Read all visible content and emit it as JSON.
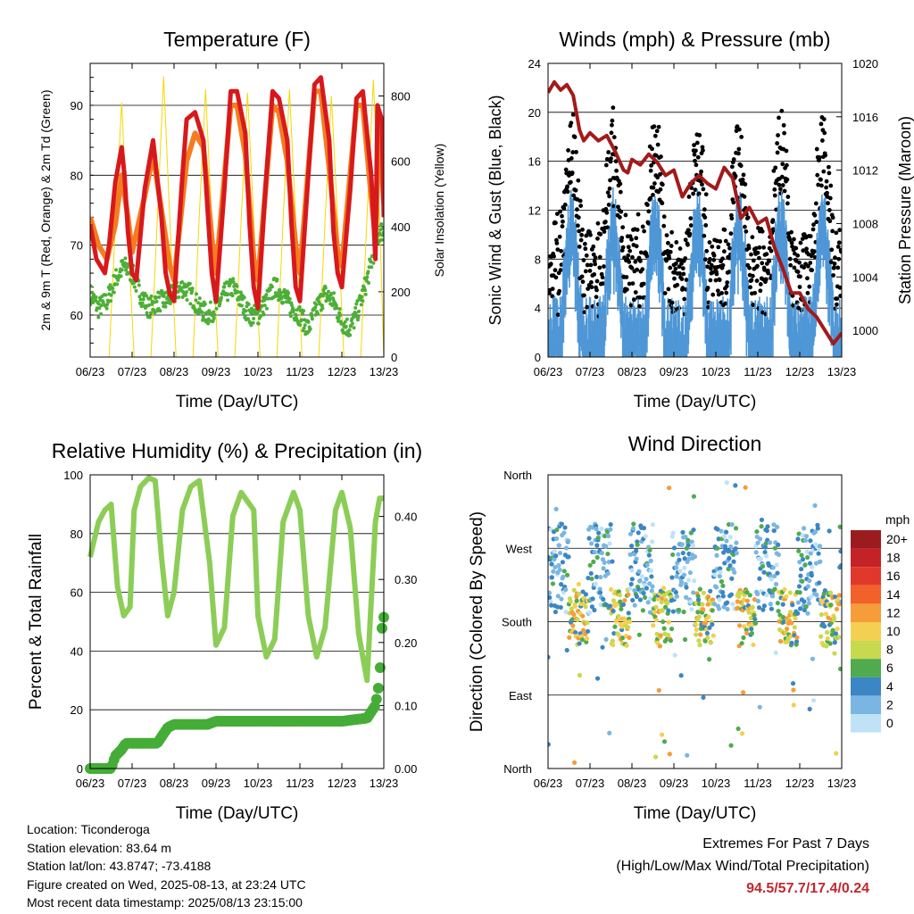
{
  "x_ticks": [
    "06/23",
    "07/23",
    "08/23",
    "09/23",
    "10/23",
    "11/23",
    "12/23",
    "13/23"
  ],
  "colors": {
    "temp2m": "#d7191c",
    "temp9m": "#f47c20",
    "dew": "#4daf37",
    "solar": "#f5d800",
    "wind": "#4f97d6",
    "gust": "#000000",
    "pressure": "#a31a1a",
    "rh": "#8ccd57",
    "precip": "#45ad37"
  },
  "charts": [
    {
      "type": "line",
      "title": "Temperature (F)",
      "xlabel": "Time (Day/UTC)",
      "ylabel": "2m & 9m T (Red, Orange) & 2m Td (Green)",
      "y2label": "Solar Insolation (Yellow)",
      "ylim": [
        54,
        96
      ],
      "yticks": [
        60,
        70,
        80,
        90
      ],
      "y2lim": [
        0,
        900
      ],
      "y2ticks": [
        0,
        200,
        400,
        600,
        800
      ],
      "series": [
        {
          "key": "temp2m",
          "x": [
            0,
            0.15,
            0.35,
            0.45,
            0.6,
            0.75,
            0.82,
            0.9,
            1.0,
            1.1,
            1.3,
            1.5,
            1.7,
            1.8,
            1.9,
            2.0,
            2.2,
            2.3,
            2.5,
            2.7,
            2.8,
            2.9,
            3.0,
            3.2,
            3.35,
            3.5,
            3.7,
            3.8,
            3.9,
            4.0,
            4.2,
            4.35,
            4.5,
            4.7,
            4.8,
            4.9,
            5.0,
            5.2,
            5.35,
            5.5,
            5.7,
            5.8,
            5.9,
            6.0,
            6.2,
            6.35,
            6.5,
            6.7,
            6.8,
            6.85,
            6.95,
            7.0
          ],
          "y": [
            73,
            68,
            66,
            70,
            79,
            84,
            80,
            72,
            66,
            65,
            78,
            85,
            74,
            66,
            63,
            62,
            80,
            88,
            89,
            85,
            75,
            66,
            62,
            78,
            92,
            92,
            86,
            73,
            64,
            61,
            80,
            92,
            91,
            85,
            73,
            64,
            62,
            80,
            93,
            94,
            85,
            72,
            66,
            64,
            78,
            91,
            92,
            80,
            68,
            90,
            88,
            74
          ]
        },
        {
          "key": "temp9m",
          "x": [
            0,
            0.2,
            0.4,
            0.6,
            0.75,
            0.9,
            1.0,
            1.3,
            1.5,
            1.7,
            1.9,
            2.0,
            2.3,
            2.5,
            2.7,
            2.9,
            3.0,
            3.35,
            3.5,
            3.7,
            3.9,
            4.0,
            4.35,
            4.5,
            4.7,
            4.9,
            5.0,
            5.35,
            5.5,
            5.7,
            5.9,
            6.0,
            6.35,
            6.5,
            6.7,
            6.8,
            6.9,
            7.0
          ],
          "y": [
            74,
            70,
            68,
            73,
            80,
            74,
            69,
            77,
            83,
            75,
            67,
            65,
            82,
            86,
            84,
            71,
            66,
            90,
            90,
            83,
            68,
            65,
            90,
            89,
            82,
            70,
            66,
            92,
            92,
            81,
            69,
            67,
            90,
            90,
            77,
            71,
            88,
            76
          ]
        },
        {
          "key": "dew",
          "x": [
            0,
            0.2,
            0.4,
            0.6,
            0.8,
            1.0,
            1.2,
            1.4,
            1.6,
            1.8,
            2.0,
            2.2,
            2.4,
            2.6,
            2.8,
            3.0,
            3.2,
            3.4,
            3.6,
            3.8,
            4.0,
            4.2,
            4.4,
            4.6,
            4.8,
            5.0,
            5.2,
            5.4,
            5.6,
            5.8,
            6.0,
            6.2,
            6.4,
            6.6,
            6.8,
            6.9,
            7.0
          ],
          "y": [
            63,
            61,
            62,
            65,
            67,
            66,
            63,
            61,
            62,
            62,
            63,
            64,
            63,
            61,
            60,
            61,
            63,
            64,
            62,
            60,
            60,
            62,
            64,
            63,
            61,
            60,
            58,
            61,
            63,
            62,
            59,
            58,
            61,
            65,
            70,
            72,
            72
          ]
        },
        {
          "key": "solar",
          "x": [
            0,
            0.45,
            0.6,
            0.75,
            0.9,
            1.05,
            1.45,
            1.6,
            1.75,
            1.9,
            2.05,
            2.45,
            2.6,
            2.75,
            2.9,
            3.05,
            3.45,
            3.6,
            3.75,
            3.9,
            4.05,
            4.45,
            4.6,
            4.75,
            4.9,
            5.05,
            5.45,
            5.6,
            5.75,
            5.9,
            6.05,
            6.45,
            6.6,
            6.75,
            6.9,
            7.0
          ],
          "y": [
            0,
            0,
            400,
            780,
            380,
            0,
            0,
            420,
            860,
            420,
            0,
            0,
            430,
            820,
            410,
            0,
            0,
            420,
            810,
            420,
            0,
            0,
            420,
            820,
            420,
            0,
            0,
            420,
            800,
            420,
            0,
            0,
            430,
            850,
            420,
            0
          ]
        }
      ]
    },
    {
      "type": "scatter",
      "title": "Winds (mph) & Pressure (mb)",
      "xlabel": "Time (Day/UTC)",
      "ylabel": "Sonic Wind & Gust (Blue, Black)",
      "y2label": "Station Pressure (Maroon)",
      "ylim": [
        0,
        24
      ],
      "yticks": [
        0,
        4,
        8,
        12,
        16,
        20,
        24
      ],
      "y2lim": [
        998,
        1020
      ],
      "y2ticks": [
        1000,
        1004,
        1008,
        1012,
        1016,
        1020
      ],
      "series": [
        {
          "key": "pressure",
          "x": [
            0,
            0.15,
            0.3,
            0.45,
            0.6,
            0.75,
            0.85,
            1.0,
            1.2,
            1.4,
            1.6,
            1.8,
            1.9,
            2.0,
            2.2,
            2.4,
            2.6,
            2.8,
            3.0,
            3.2,
            3.4,
            3.6,
            3.8,
            4.0,
            4.2,
            4.4,
            4.6,
            4.8,
            5.0,
            5.2,
            5.4,
            5.6,
            5.8,
            6.0,
            6.2,
            6.4,
            6.6,
            6.8,
            6.9,
            7.0
          ],
          "y": [
            1017.8,
            1018.6,
            1018.0,
            1018.4,
            1017.6,
            1015.0,
            1014.2,
            1014.8,
            1014.2,
            1014.6,
            1013.4,
            1012.0,
            1011.8,
            1012.8,
            1012.4,
            1013.2,
            1012.6,
            1011.6,
            1012.0,
            1010.0,
            1011.0,
            1011.6,
            1011.0,
            1010.6,
            1012.2,
            1011.4,
            1008.4,
            1009.2,
            1008.0,
            1008.4,
            1006.2,
            1004.6,
            1002.8,
            1002.8,
            1001.6,
            1001.0,
            1000.0,
            999.0,
            999.4,
            999.8
          ]
        }
      ]
    },
    {
      "type": "line",
      "title": "Relative Humidity (%) & Precipitation (in)",
      "xlabel": "Time (Day/UTC)",
      "ylabel": "Percent & Total Rainfall",
      "ylim": [
        0,
        100
      ],
      "yticks": [
        0,
        20,
        40,
        60,
        80,
        100
      ],
      "y2lim": [
        0,
        0.466
      ],
      "y2ticks": [
        "0.00",
        "0.10",
        "0.20",
        "0.30",
        "0.40"
      ],
      "series": [
        {
          "key": "rh",
          "x": [
            0,
            0.2,
            0.35,
            0.5,
            0.65,
            0.8,
            0.95,
            1.05,
            1.2,
            1.4,
            1.55,
            1.7,
            1.85,
            2.0,
            2.2,
            2.4,
            2.6,
            2.85,
            3.0,
            3.2,
            3.4,
            3.6,
            3.9,
            4.0,
            4.2,
            4.4,
            4.6,
            4.85,
            5.0,
            5.2,
            5.4,
            5.6,
            5.85,
            6.0,
            6.2,
            6.4,
            6.6,
            6.8,
            6.9,
            7.0
          ],
          "y": [
            72,
            84,
            88,
            90,
            62,
            52,
            55,
            88,
            96,
            99,
            98,
            72,
            52,
            60,
            88,
            96,
            98,
            70,
            42,
            48,
            86,
            94,
            88,
            52,
            38,
            44,
            84,
            94,
            88,
            52,
            38,
            48,
            88,
            94,
            82,
            46,
            30,
            84,
            92,
            92
          ]
        },
        {
          "key": "precip",
          "x": [
            0,
            0.5,
            0.6,
            0.75,
            0.85,
            1.6,
            1.75,
            1.85,
            2.0,
            2.8,
            3.0,
            6.0,
            6.6,
            6.8,
            6.9,
            6.95,
            7.0
          ],
          "y": [
            0,
            0,
            0.02,
            0.03,
            0.04,
            0.04,
            0.055,
            0.065,
            0.07,
            0.07,
            0.075,
            0.075,
            0.08,
            0.1,
            0.14,
            0.22,
            0.24
          ]
        }
      ]
    },
    {
      "type": "scatter",
      "title": "Wind Direction",
      "xlabel": "Time (Day/UTC)",
      "ylabel": "Direction (Colored By Speed)",
      "yticks": [
        "North",
        "East",
        "South",
        "West",
        "North"
      ],
      "colorbar": {
        "unit": "mph",
        "labels": [
          "20+",
          "18",
          "16",
          "14",
          "12",
          "10",
          "8",
          "6",
          "4",
          "2",
          "0"
        ],
        "colors": [
          "#9b1c1f",
          "#c42227",
          "#e0382a",
          "#f26129",
          "#f69c3a",
          "#f3cf52",
          "#c8d94e",
          "#4fab4e",
          "#3b86c4",
          "#7ab6e2",
          "#c0e2f6"
        ]
      }
    }
  ],
  "station": {
    "location": "Location: Ticonderoga",
    "elevation": "Station elevation: 83.64 m",
    "latlon": "Station lat/lon: 43.8747; -73.4188",
    "created": "Figure created on Wed, 2025-08-13, at 23:24 UTC",
    "latest": "Most recent data timestamp: 2025/08/13 23:15:00"
  },
  "extremes": {
    "title": "Extremes For Past 7 Days",
    "subtitle": "(High/Low/Max Wind/Total Precipitation)",
    "values": "94.5/57.7/17.4/0.24"
  }
}
